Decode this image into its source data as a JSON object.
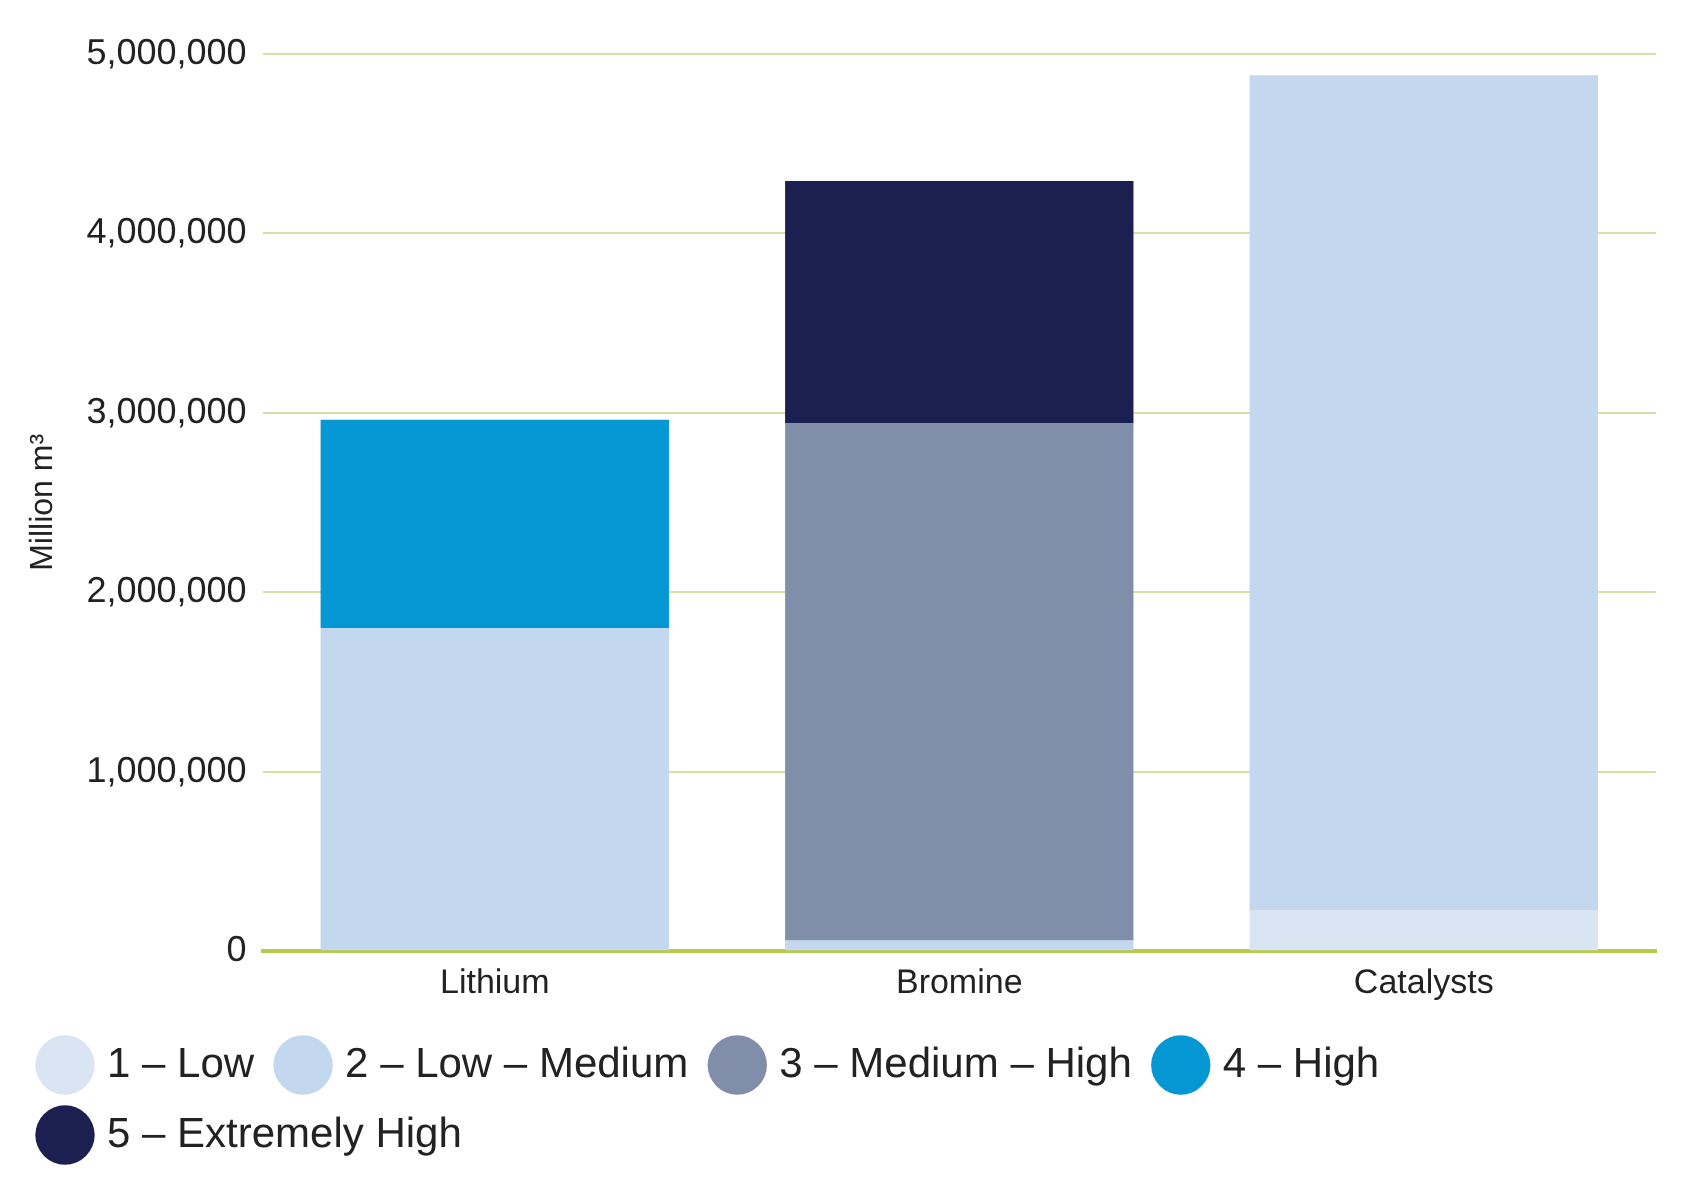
{
  "chart_data": {
    "type": "bar",
    "ylabel": "Million m³",
    "categories": [
      "Lithium",
      "Bromine",
      "Catalysts"
    ],
    "stacked": true,
    "series": [
      {
        "name": "1 – Low",
        "color": "#dae5f4",
        "values": [
          null,
          0,
          230000
        ]
      },
      {
        "name": "2 – Low – Medium",
        "color": "#c3d7ef",
        "values": [
          1800000,
          60000,
          4650000
        ]
      },
      {
        "name": "3 – Medium – High",
        "color": "#808ea9",
        "values": [
          0,
          2880000,
          0
        ]
      },
      {
        "name": "4 – High",
        "color": "#0596d4",
        "values": [
          1160000,
          0,
          0
        ]
      },
      {
        "name": "5 – Extremely High",
        "color": "#1b2050",
        "values": [
          0,
          1350000,
          0
        ]
      }
    ],
    "ylim": [
      0,
      5000000
    ],
    "yticks": [
      0,
      {
        "value": 1000000,
        "label": "1,000,000"
      },
      {
        "value": 2000000,
        "label": "2,000,000"
      },
      {
        "value": 3000000,
        "label": "3,000,000"
      },
      {
        "value": 4000000,
        "label": "4,000,000"
      },
      {
        "value": 5000000,
        "label": "5,000,000"
      }
    ],
    "grid": "y",
    "legend": "bottom left"
  }
}
